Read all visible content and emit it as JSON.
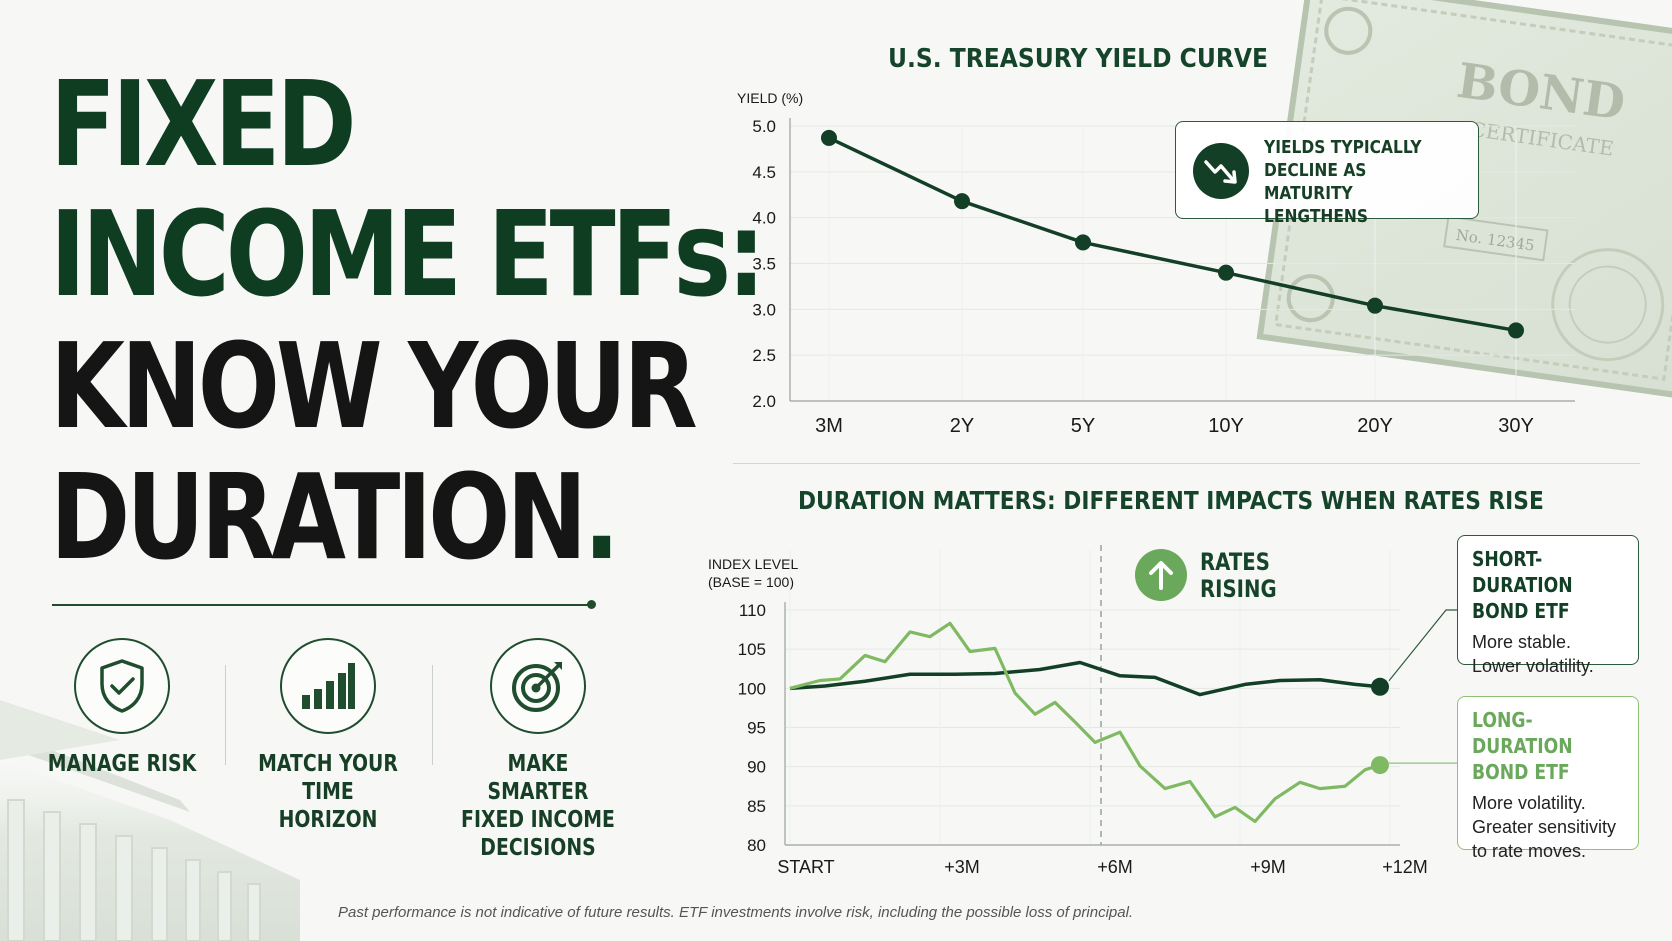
{
  "headline": {
    "line1": "FIXED",
    "line2": "INCOME ETFs:",
    "line3": "KNOW YOUR",
    "line4": "DURATION",
    "line4_dot": "."
  },
  "features": [
    {
      "icon": "shield-check-icon",
      "label": "MANAGE RISK"
    },
    {
      "icon": "bar-chart-icon",
      "label": "MATCH YOUR\nTIME HORIZON"
    },
    {
      "icon": "target-icon",
      "label": "MAKE SMARTER\nFIXED INCOME\nDECISIONS"
    }
  ],
  "bond_certificate": {
    "title": "BOND",
    "subtitle": "CERTIFICATE",
    "number": "No. 12345"
  },
  "disclaimer": "Past performance is not indicative of future results. ETF investments involve risk, including the possible loss of principal.",
  "colors": {
    "dark_green": "#0f3d22",
    "line_dark": "#123f25",
    "line_light": "#7fba62",
    "light_green_text": "#6aa85b"
  },
  "chart_data": [
    {
      "type": "line",
      "title": "U.S. TREASURY YIELD CURVE",
      "ylabel": "YIELD (%)",
      "xlabel": "",
      "categories": [
        "3M",
        "2Y",
        "5Y",
        "10Y",
        "20Y",
        "30Y"
      ],
      "x_positions": [
        0.25,
        2,
        5,
        10,
        20,
        30
      ],
      "series": [
        {
          "values": [
            4.87,
            4.18,
            3.73,
            3.4,
            3.04,
            2.77
          ]
        }
      ],
      "ylim": [
        2.0,
        5.0
      ],
      "yticks": [
        2.0,
        2.5,
        3.0,
        3.5,
        4.0,
        4.5,
        5.0
      ],
      "grid": true,
      "annotation": "YIELDS TYPICALLY\nDECLINE AS\nMATURITY LENGTHENS"
    },
    {
      "type": "line",
      "title": "DURATION MATTERS: DIFFERENT IMPACTS WHEN RATES RISE",
      "ylabel": "INDEX LEVEL\n(BASE = 100)",
      "xlabel": "",
      "x_tick_labels": [
        "START",
        "+3M",
        "+6M",
        "+9M",
        "+12M"
      ],
      "x_ticks_months": [
        0,
        3,
        6,
        9,
        12
      ],
      "ylim": [
        80,
        110
      ],
      "yticks": [
        80,
        85,
        90,
        95,
        100,
        105,
        110
      ],
      "grid": true,
      "event": {
        "label": "RATES\nRISING",
        "month": 6
      },
      "series": [
        {
          "name": "SHORT-DURATION\nBOND ETF",
          "description": "More stable.\nLower volatility.",
          "months": [
            0,
            0.7,
            1.5,
            2.4,
            3.3,
            4.1,
            5.0,
            5.8,
            6.6,
            7.3,
            8.2,
            9.1,
            9.8,
            10.6,
            11.3,
            11.8
          ],
          "values": [
            100,
            100.3,
            100.9,
            101.8,
            101.8,
            101.9,
            102.4,
            103.3,
            101.6,
            101.4,
            99.2,
            100.5,
            101.0,
            101.1,
            100.5,
            100.2
          ]
        },
        {
          "name": "LONG-DURATION\nBOND ETF",
          "description": "More volatility.\nGreater sensitivity\nto rate moves.",
          "months": [
            0,
            0.6,
            1.0,
            1.5,
            1.9,
            2.4,
            2.8,
            3.2,
            3.6,
            4.1,
            4.5,
            4.9,
            5.3,
            5.7,
            6.1,
            6.6,
            7.0,
            7.5,
            8.0,
            8.5,
            8.9,
            9.3,
            9.7,
            10.2,
            10.6,
            11.1,
            11.5,
            11.8
          ],
          "values": [
            100,
            101,
            101.2,
            104.2,
            103.4,
            107.2,
            106.6,
            108.3,
            104.7,
            105.1,
            99.4,
            96.7,
            98.2,
            95.7,
            93.1,
            94.4,
            90.1,
            87.2,
            88.1,
            83.6,
            84.8,
            83.0,
            85.9,
            88.0,
            87.2,
            87.5,
            89.6,
            90.2
          ]
        }
      ]
    }
  ]
}
